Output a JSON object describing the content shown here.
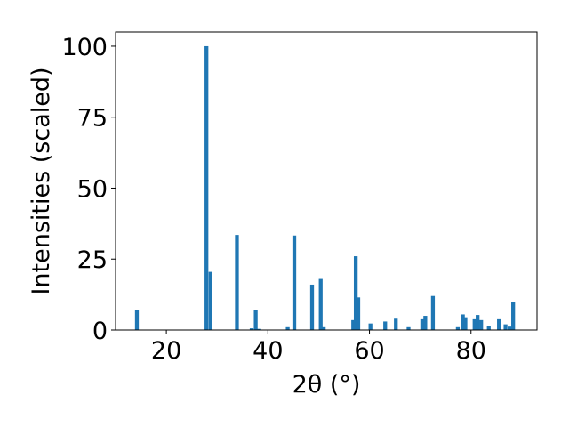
{
  "chart_data": {
    "type": "bar",
    "title": "",
    "xlabel": "2θ (°)",
    "ylabel": "Intensities (scaled)",
    "xlim": [
      10,
      93
    ],
    "ylim": [
      0,
      105
    ],
    "xticks": [
      20,
      40,
      60,
      80
    ],
    "yticks": [
      0,
      25,
      50,
      75,
      100
    ],
    "grid": false,
    "bar_width": 0.75,
    "color": "#1f77b4",
    "peaks": [
      {
        "x": 14.2,
        "y": 7.0
      },
      {
        "x": 27.9,
        "y": 100.0
      },
      {
        "x": 28.7,
        "y": 20.5
      },
      {
        "x": 33.9,
        "y": 33.5
      },
      {
        "x": 36.8,
        "y": 0.6
      },
      {
        "x": 37.6,
        "y": 7.2
      },
      {
        "x": 38.3,
        "y": 0.4
      },
      {
        "x": 43.9,
        "y": 1.0
      },
      {
        "x": 45.2,
        "y": 33.3
      },
      {
        "x": 48.7,
        "y": 16.0
      },
      {
        "x": 50.4,
        "y": 18.0
      },
      {
        "x": 51.0,
        "y": 1.0
      },
      {
        "x": 56.8,
        "y": 3.5
      },
      {
        "x": 57.3,
        "y": 26.0
      },
      {
        "x": 57.8,
        "y": 11.5
      },
      {
        "x": 60.2,
        "y": 2.3
      },
      {
        "x": 63.1,
        "y": 3.0
      },
      {
        "x": 65.2,
        "y": 4.0
      },
      {
        "x": 67.7,
        "y": 1.0
      },
      {
        "x": 70.4,
        "y": 3.8
      },
      {
        "x": 71.0,
        "y": 5.0
      },
      {
        "x": 72.5,
        "y": 12.0
      },
      {
        "x": 77.4,
        "y": 1.0
      },
      {
        "x": 78.4,
        "y": 5.5
      },
      {
        "x": 78.9,
        "y": 4.5
      },
      {
        "x": 80.7,
        "y": 3.8
      },
      {
        "x": 81.3,
        "y": 5.3
      },
      {
        "x": 82.0,
        "y": 3.5
      },
      {
        "x": 83.5,
        "y": 1.3
      },
      {
        "x": 85.5,
        "y": 3.8
      },
      {
        "x": 86.8,
        "y": 2.0
      },
      {
        "x": 87.6,
        "y": 1.2
      },
      {
        "x": 88.3,
        "y": 9.8
      }
    ]
  }
}
